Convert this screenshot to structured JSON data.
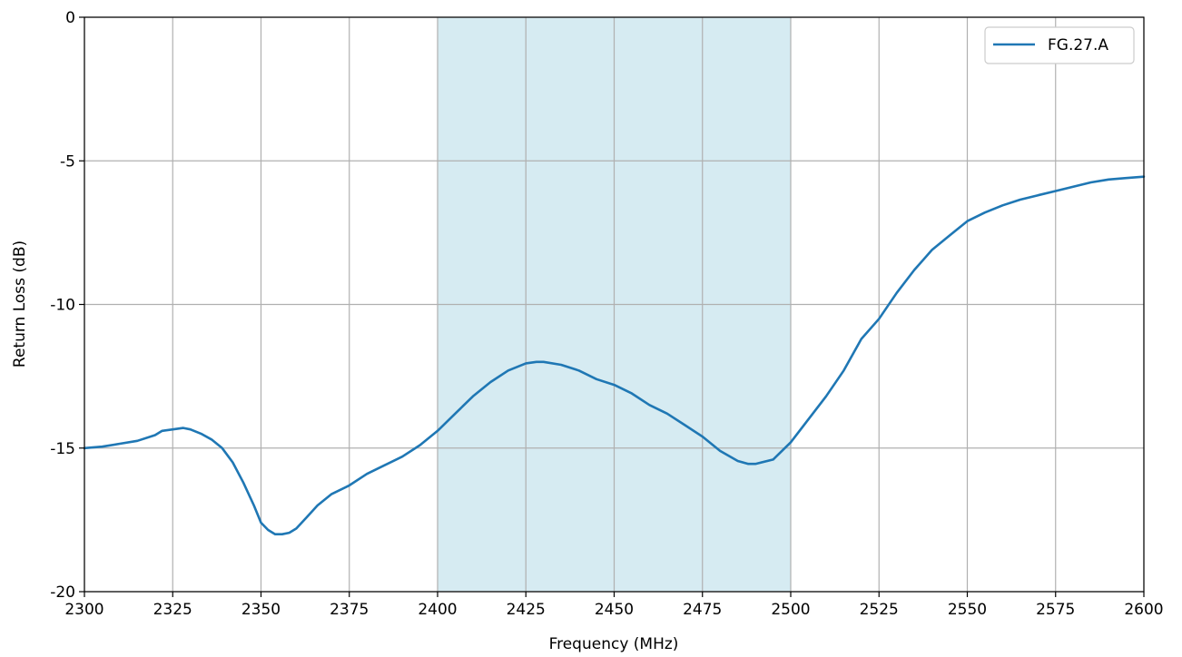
{
  "chart_data": {
    "type": "line",
    "title": "",
    "xlabel": "Frequency (MHz)",
    "ylabel": "Return Loss (dB)",
    "xlim": [
      2300,
      2600
    ],
    "ylim": [
      -20,
      0
    ],
    "xticks": [
      2300,
      2325,
      2350,
      2375,
      2400,
      2425,
      2450,
      2475,
      2500,
      2525,
      2550,
      2575,
      2600
    ],
    "yticks": [
      0,
      -5,
      -10,
      -15,
      -20
    ],
    "xtick_labels": [
      "2300",
      "2325",
      "2350",
      "2375",
      "2400",
      "2425",
      "2450",
      "2475",
      "2500",
      "2525",
      "2550",
      "2575",
      "2600"
    ],
    "ytick_labels": [
      "0",
      "-5",
      "-10",
      "-15",
      "-20"
    ],
    "grid": true,
    "legend_position": "top-right",
    "shaded_band": {
      "x_start": 2400,
      "x_end": 2500,
      "color": "#add8e6"
    },
    "series": [
      {
        "name": "FG.27.A",
        "color": "#1f77b4",
        "x": [
          2300,
          2305,
          2310,
          2315,
          2320,
          2322,
          2325,
          2328,
          2330,
          2333,
          2336,
          2339,
          2342,
          2345,
          2348,
          2350,
          2352,
          2354,
          2356,
          2358,
          2360,
          2363,
          2366,
          2370,
          2375,
          2380,
          2385,
          2390,
          2395,
          2400,
          2405,
          2410,
          2415,
          2420,
          2425,
          2428,
          2430,
          2435,
          2440,
          2445,
          2450,
          2455,
          2460,
          2465,
          2470,
          2475,
          2480,
          2485,
          2488,
          2490,
          2495,
          2500,
          2505,
          2510,
          2515,
          2520,
          2525,
          2530,
          2535,
          2540,
          2545,
          2550,
          2555,
          2560,
          2565,
          2570,
          2575,
          2580,
          2585,
          2590,
          2595,
          2600
        ],
        "y": [
          -15.0,
          -14.95,
          -14.85,
          -14.75,
          -14.55,
          -14.4,
          -14.35,
          -14.3,
          -14.35,
          -14.5,
          -14.7,
          -15.0,
          -15.5,
          -16.2,
          -17.0,
          -17.6,
          -17.85,
          -18.0,
          -18.0,
          -17.95,
          -17.8,
          -17.4,
          -17.0,
          -16.6,
          -16.3,
          -15.9,
          -15.6,
          -15.3,
          -14.9,
          -14.4,
          -13.8,
          -13.2,
          -12.7,
          -12.3,
          -12.05,
          -12.0,
          -12.0,
          -12.1,
          -12.3,
          -12.6,
          -12.8,
          -13.1,
          -13.5,
          -13.8,
          -14.2,
          -14.6,
          -15.1,
          -15.45,
          -15.55,
          -15.55,
          -15.4,
          -14.8,
          -14.0,
          -13.2,
          -12.3,
          -11.2,
          -10.5,
          -9.6,
          -8.8,
          -8.1,
          -7.6,
          -7.1,
          -6.8,
          -6.55,
          -6.35,
          -6.2,
          -6.05,
          -5.9,
          -5.75,
          -5.65,
          -5.6,
          -5.55
        ]
      }
    ]
  }
}
